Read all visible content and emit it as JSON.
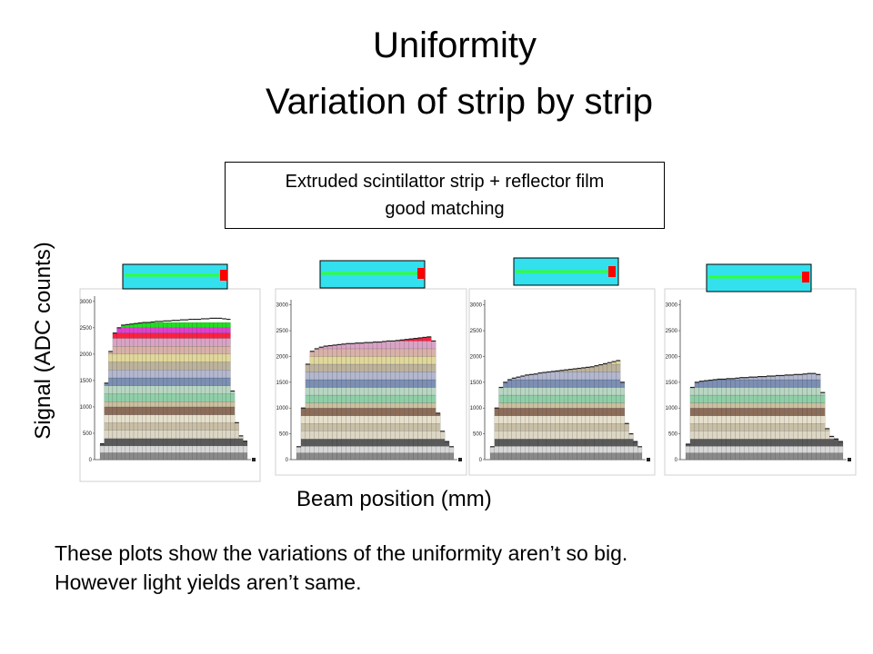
{
  "title_line1": "Uniformity",
  "title_line2": "Variation of strip by strip",
  "callout": {
    "line1": "Extruded scintilattor strip + reflector film",
    "line2": "good matching"
  },
  "ylabel": "Signal (ADC counts)",
  "xlabel": "Beam position (mm)",
  "caption": {
    "line1": "These plots show the variations of the uniformity aren’t so big.",
    "line2": "However light yields aren’t same."
  },
  "colors": {
    "strip_fill": "#33e0ee",
    "fiber": "#33ff33",
    "sensor": "#ff0000"
  },
  "chart_data": [
    {
      "type": "bar",
      "yticks": [
        0,
        500,
        1000,
        1500,
        2000,
        2500,
        3000
      ],
      "ylim": [
        0,
        3100
      ],
      "values": [
        300,
        1450,
        2050,
        2400,
        2500,
        2550,
        2560,
        2570,
        2580,
        2590,
        2600,
        2600,
        2610,
        2620,
        2620,
        2630,
        2630,
        2640,
        2640,
        2650,
        2650,
        2660,
        2660,
        2660,
        2670,
        2670,
        2680,
        2680,
        2680,
        2670,
        2660,
        1300,
        700,
        450,
        350
      ]
    },
    {
      "type": "bar",
      "yticks": [
        0,
        500,
        1000,
        1500,
        2000,
        2500,
        3000
      ],
      "ylim": [
        0,
        3100
      ],
      "values": [
        250,
        1000,
        1850,
        2100,
        2150,
        2180,
        2200,
        2210,
        2220,
        2230,
        2240,
        2250,
        2250,
        2260,
        2260,
        2270,
        2270,
        2280,
        2280,
        2290,
        2300,
        2300,
        2310,
        2320,
        2330,
        2340,
        2350,
        2360,
        2370,
        2380,
        2300,
        900,
        550,
        350,
        250
      ]
    },
    {
      "type": "bar",
      "yticks": [
        0,
        500,
        1000,
        1500,
        2000,
        2500,
        3000
      ],
      "ylim": [
        0,
        3100
      ],
      "values": [
        250,
        1000,
        1400,
        1500,
        1550,
        1580,
        1600,
        1620,
        1640,
        1650,
        1660,
        1680,
        1690,
        1700,
        1710,
        1720,
        1730,
        1740,
        1750,
        1760,
        1770,
        1780,
        1790,
        1800,
        1820,
        1840,
        1860,
        1880,
        1900,
        1920,
        1500,
        700,
        500,
        350,
        250
      ]
    },
    {
      "type": "bar",
      "yticks": [
        0,
        500,
        1000,
        1500,
        2000,
        2500,
        3000
      ],
      "ylim": [
        0,
        3100
      ],
      "values": [
        300,
        1400,
        1500,
        1520,
        1530,
        1540,
        1550,
        1560,
        1560,
        1570,
        1570,
        1580,
        1590,
        1590,
        1600,
        1600,
        1610,
        1610,
        1620,
        1620,
        1630,
        1630,
        1640,
        1640,
        1650,
        1650,
        1660,
        1670,
        1670,
        1650,
        1300,
        600,
        450,
        400,
        350
      ]
    }
  ]
}
